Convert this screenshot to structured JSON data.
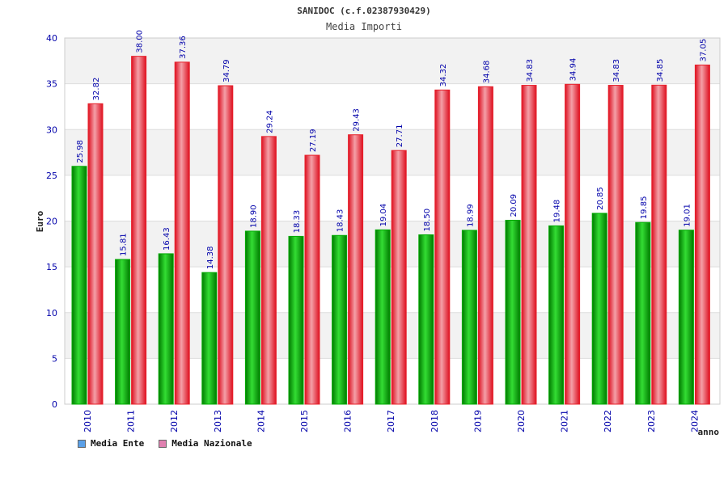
{
  "colors": {
    "ente": "#00aa00",
    "nazionale": "#e8202a",
    "legend_ente": "#5aa0e8",
    "legend_nazionale": "#e080b0",
    "grid_band": "#f2f2f2",
    "tick_text": "#0000aa"
  },
  "chart_data": {
    "type": "bar",
    "title": "SANIDOC (c.f.02387930429)",
    "subtitle": "Media Importi",
    "ylabel": "Euro",
    "xlabel": "anno",
    "ylim": [
      0,
      40
    ],
    "yticks": [
      "0",
      "5",
      "10",
      "15",
      "20",
      "25",
      "30",
      "35",
      "40"
    ],
    "grid": true,
    "legend_position": "bottom-left",
    "categories": [
      "2010",
      "2011",
      "2012",
      "2013",
      "2014",
      "2015",
      "2016",
      "2017",
      "2018",
      "2019",
      "2020",
      "2021",
      "2022",
      "2023",
      "2024"
    ],
    "series": [
      {
        "name": "Media Ente",
        "values": [
          25.98,
          15.81,
          16.43,
          14.38,
          18.9,
          18.33,
          18.43,
          19.04,
          18.5,
          18.99,
          20.09,
          19.48,
          20.85,
          19.85,
          19.01
        ],
        "labels": [
          "25.98",
          "15.81",
          "16.43",
          "14.38",
          "18.90",
          "18.33",
          "18.43",
          "19.04",
          "18.50",
          "18.99",
          "20.09",
          "19.48",
          "20.85",
          "19.85",
          "19.01"
        ]
      },
      {
        "name": "Media Nazionale",
        "values": [
          32.82,
          38.0,
          37.36,
          34.79,
          29.24,
          27.19,
          29.43,
          27.71,
          34.32,
          34.68,
          34.83,
          34.94,
          34.83,
          34.85,
          37.05
        ],
        "labels": [
          "32.82",
          "38.00",
          "37.36",
          "34.79",
          "29.24",
          "27.19",
          "29.43",
          "27.71",
          "34.32",
          "34.68",
          "34.83",
          "34.94",
          "34.83",
          "34.85",
          "37.05"
        ]
      }
    ]
  }
}
